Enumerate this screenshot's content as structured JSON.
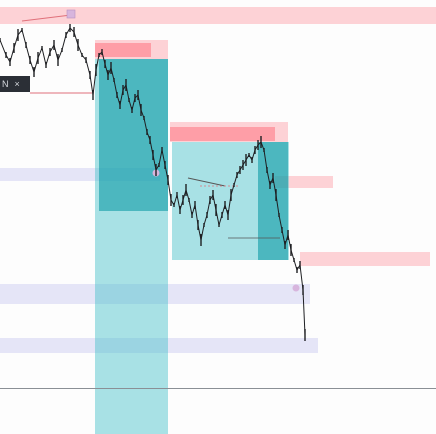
{
  "toolbar": {
    "icon_label": "N",
    "close_label": "×"
  },
  "colors": {
    "supply_zone": "#ff7887",
    "demand_zone": "#aaaaeb",
    "target_zone": "#40bec8",
    "candle": "#1e1f22",
    "guide_line": "#e0707a",
    "marker": "#d7b5dd"
  },
  "axis": {
    "tick_labels": [
      "",
      "",
      "",
      "",
      "",
      "",
      "",
      "",
      "",
      "",
      "",
      ""
    ]
  }
}
